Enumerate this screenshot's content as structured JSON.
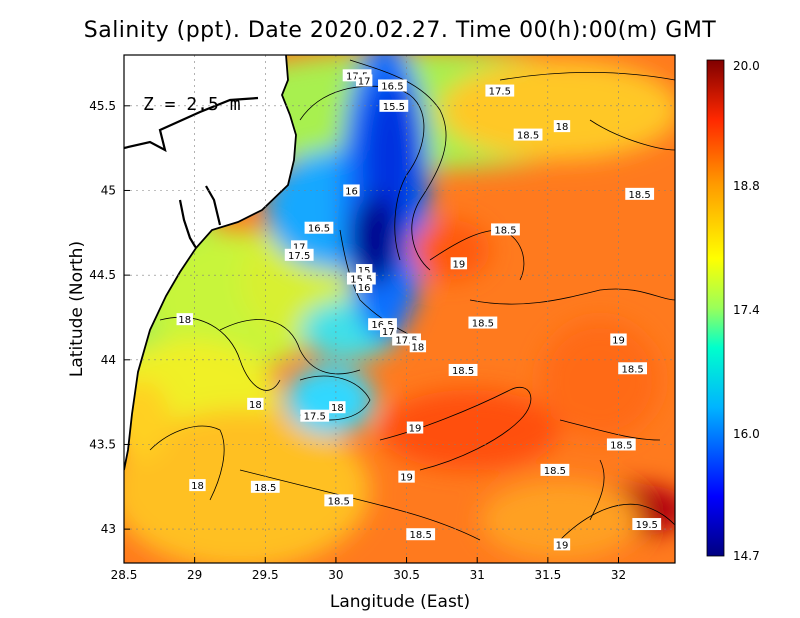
{
  "title": "Salinity (ppt). Date 2020.02.27. Time 00(h):00(m) GMT",
  "depth_label": "Z = 2.5 m",
  "x_axis_label": "Langitude (East)",
  "y_axis_label": "Latitude (North)",
  "chart_data": {
    "type": "heatmap",
    "variable": "Salinity (ppt)",
    "date": "2020.02.27",
    "time": "00(h):00(m) GMT",
    "xlim": [
      28.5,
      32.4
    ],
    "ylim": [
      42.8,
      45.8
    ],
    "x_ticks": [
      "28.5",
      "29",
      "29.5",
      "30",
      "30.5",
      "31",
      "31.5",
      "32"
    ],
    "y_ticks": [
      "43",
      "43.5",
      "44",
      "44.5",
      "45",
      "45.5"
    ],
    "colorbar": {
      "min": 14.7,
      "max": 20.0,
      "tick_labels": [
        "20.0",
        "18.8",
        "17.4",
        "16.0",
        "14.7"
      ]
    },
    "colors": {
      "low": "#000080",
      "mid_low": "#00c8ff",
      "mid": "#ffff00",
      "mid_high": "#ff6a00",
      "high": "#800000"
    },
    "contour_labels": [
      {
        "label": "17.5",
        "lon": 30.15,
        "lat": 45.68
      },
      {
        "label": "17",
        "lon": 30.2,
        "lat": 45.65
      },
      {
        "label": "16.5",
        "lon": 30.4,
        "lat": 45.62
      },
      {
        "label": "15.5",
        "lon": 30.41,
        "lat": 45.5
      },
      {
        "label": "17.5",
        "lon": 31.16,
        "lat": 45.59
      },
      {
        "label": "18",
        "lon": 31.6,
        "lat": 45.38
      },
      {
        "label": "18.5",
        "lon": 31.36,
        "lat": 45.33
      },
      {
        "label": "18.5",
        "lon": 32.15,
        "lat": 44.98
      },
      {
        "label": "16",
        "lon": 30.11,
        "lat": 45.0
      },
      {
        "label": "16.5",
        "lon": 29.88,
        "lat": 44.78
      },
      {
        "label": "17",
        "lon": 29.74,
        "lat": 44.67
      },
      {
        "label": "17.5",
        "lon": 29.74,
        "lat": 44.62
      },
      {
        "label": "18.5",
        "lon": 31.2,
        "lat": 44.77
      },
      {
        "label": "19",
        "lon": 30.87,
        "lat": 44.57
      },
      {
        "label": "15",
        "lon": 30.2,
        "lat": 44.53
      },
      {
        "label": "15.5",
        "lon": 30.18,
        "lat": 44.48
      },
      {
        "label": "16",
        "lon": 30.2,
        "lat": 44.43
      },
      {
        "label": "18.5",
        "lon": 31.04,
        "lat": 44.22
      },
      {
        "label": "19",
        "lon": 32.0,
        "lat": 44.12
      },
      {
        "label": "18",
        "lon": 28.93,
        "lat": 44.24
      },
      {
        "label": "16.5",
        "lon": 30.33,
        "lat": 44.21
      },
      {
        "label": "17",
        "lon": 30.37,
        "lat": 44.17
      },
      {
        "label": "17.5",
        "lon": 30.5,
        "lat": 44.12
      },
      {
        "label": "18",
        "lon": 30.58,
        "lat": 44.08
      },
      {
        "label": "18.5",
        "lon": 32.1,
        "lat": 43.95
      },
      {
        "label": "18.5",
        "lon": 30.9,
        "lat": 43.94
      },
      {
        "label": "18",
        "lon": 29.43,
        "lat": 43.74
      },
      {
        "label": "17.5",
        "lon": 29.85,
        "lat": 43.67
      },
      {
        "label": "18",
        "lon": 30.01,
        "lat": 43.72
      },
      {
        "label": "19",
        "lon": 30.56,
        "lat": 43.6
      },
      {
        "label": "18.5",
        "lon": 32.02,
        "lat": 43.5
      },
      {
        "label": "18.5",
        "lon": 31.55,
        "lat": 43.35
      },
      {
        "label": "19",
        "lon": 30.5,
        "lat": 43.31
      },
      {
        "label": "18",
        "lon": 29.02,
        "lat": 43.26
      },
      {
        "label": "18.5",
        "lon": 29.5,
        "lat": 43.25
      },
      {
        "label": "18.5",
        "lon": 30.02,
        "lat": 43.17
      },
      {
        "label": "19.5",
        "lon": 32.2,
        "lat": 43.03
      },
      {
        "label": "18.5",
        "lon": 30.6,
        "lat": 42.97
      },
      {
        "label": "19",
        "lon": 31.6,
        "lat": 42.91
      }
    ]
  }
}
